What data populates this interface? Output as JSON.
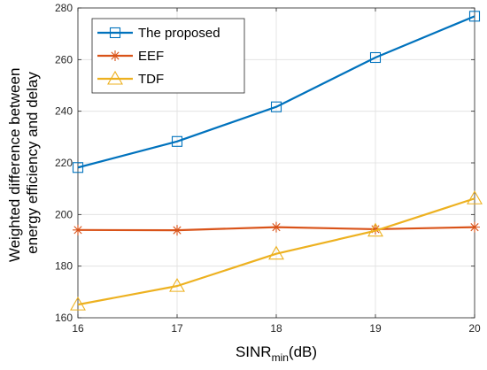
{
  "chart_data": {
    "type": "line",
    "x": [
      16,
      17,
      18,
      19,
      20
    ],
    "series": [
      {
        "name": "The proposed",
        "values": [
          218.2,
          228.3,
          241.7,
          260.8,
          276.8
        ],
        "color": "#0072BD",
        "marker": "square"
      },
      {
        "name": "EEF",
        "values": [
          194.0,
          193.9,
          195.1,
          194.3,
          195.1
        ],
        "color": "#D95319",
        "marker": "asterisk"
      },
      {
        "name": "TDF",
        "values": [
          165.1,
          172.3,
          184.8,
          193.7,
          206.2
        ],
        "color": "#EDB120",
        "marker": "triangle"
      }
    ],
    "xlabel": {
      "main": "SINR",
      "sub": "min",
      "suffix": "(dB)"
    },
    "ylabel_lines": [
      "Weighted difference between",
      "energy efficiency and delay"
    ],
    "xlim": [
      16,
      20
    ],
    "ylim": [
      160,
      280
    ],
    "xticks": [
      16,
      17,
      18,
      19,
      20
    ],
    "yticks": [
      160,
      180,
      200,
      220,
      240,
      260,
      280
    ],
    "grid": true,
    "legend_position": "top-left"
  }
}
